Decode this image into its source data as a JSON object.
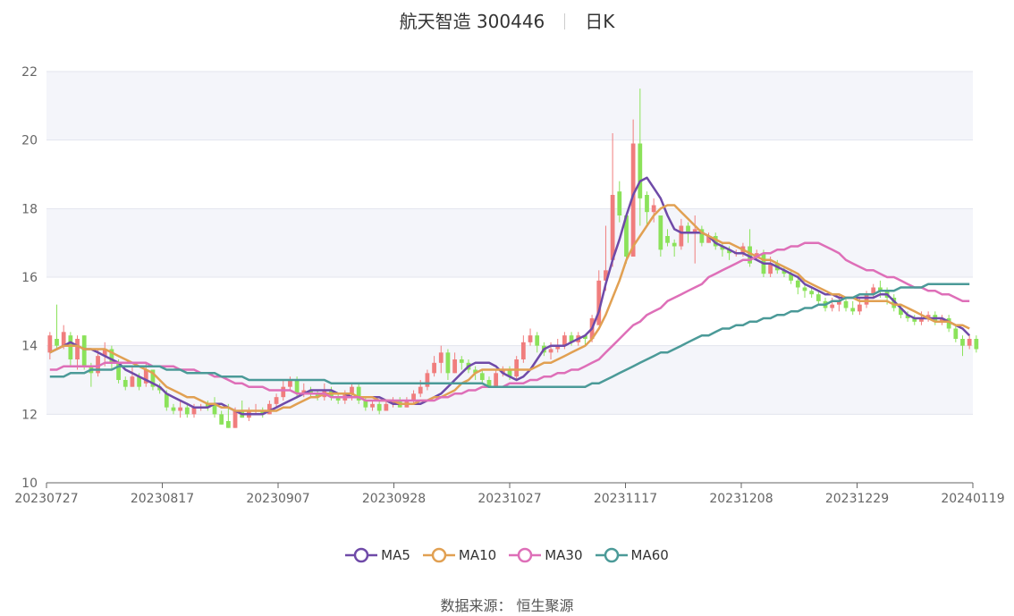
{
  "header": {
    "title": "航天智造 300446",
    "period": "日K"
  },
  "source": "数据来源： 恒生聚源",
  "colors": {
    "up": "#f07d7d",
    "down": "#8be25a",
    "ma5": "#6f4aa8",
    "ma10": "#e1a052",
    "ma30": "#de6fb8",
    "ma60": "#4b9a98"
  },
  "chart_data": {
    "type": "candlestick",
    "x_tick_labels": [
      "20230727",
      "20230817",
      "20230907",
      "20230928",
      "20231027",
      "20231117",
      "20231208",
      "20231229",
      "20240119"
    ],
    "y_tick_labels": [
      "10",
      "12",
      "14",
      "16",
      "18",
      "20",
      "22"
    ],
    "ylim": [
      10,
      22
    ],
    "series": [
      {
        "name": "MA5",
        "key": "ma5",
        "values": [
          13.8,
          13.9,
          14.0,
          14.1,
          14.0,
          13.9,
          13.9,
          13.8,
          13.7,
          13.6,
          13.5,
          13.3,
          13.2,
          13.1,
          13.0,
          12.9,
          12.8,
          12.6,
          12.5,
          12.4,
          12.3,
          12.2,
          12.2,
          12.2,
          12.3,
          12.3,
          12.2,
          12.1,
          12.0,
          12.0,
          12.0,
          12.0,
          12.1,
          12.2,
          12.3,
          12.4,
          12.5,
          12.6,
          12.7,
          12.7,
          12.7,
          12.7,
          12.6,
          12.6,
          12.5,
          12.5,
          12.5,
          12.5,
          12.5,
          12.4,
          12.3,
          12.3,
          12.3,
          12.3,
          12.3,
          12.4,
          12.5,
          12.6,
          12.8,
          13.0,
          13.2,
          13.4,
          13.5,
          13.5,
          13.5,
          13.4,
          13.2,
          13.1,
          13.0,
          13.1,
          13.3,
          13.6,
          13.9,
          14.0,
          14.0,
          14.0,
          14.1,
          14.2,
          14.3,
          14.5,
          15.0,
          15.8,
          16.5,
          17.1,
          17.8,
          18.4,
          18.8,
          18.9,
          18.6,
          18.3,
          17.8,
          17.4,
          17.3,
          17.3,
          17.3,
          17.3,
          17.2,
          17.0,
          16.9,
          16.8,
          16.7,
          16.7,
          16.6,
          16.5,
          16.4,
          16.4,
          16.3,
          16.2,
          16.1,
          16.0,
          15.8,
          15.7,
          15.6,
          15.5,
          15.5,
          15.4,
          15.4,
          15.4,
          15.4,
          15.4,
          15.4,
          15.5,
          15.5,
          15.3,
          15.1,
          14.9,
          14.8,
          14.8,
          14.8,
          14.8,
          14.8,
          14.7,
          14.6,
          14.5,
          14.3
        ]
      },
      {
        "name": "MA10",
        "key": "ma10",
        "values": [
          13.8,
          13.9,
          14.0,
          14.0,
          14.0,
          13.9,
          13.9,
          13.9,
          13.9,
          13.8,
          13.7,
          13.6,
          13.5,
          13.4,
          13.3,
          13.2,
          13.0,
          12.8,
          12.7,
          12.6,
          12.5,
          12.5,
          12.4,
          12.3,
          12.3,
          12.2,
          12.2,
          12.1,
          12.1,
          12.1,
          12.1,
          12.1,
          12.1,
          12.1,
          12.2,
          12.2,
          12.3,
          12.4,
          12.5,
          12.5,
          12.6,
          12.6,
          12.6,
          12.6,
          12.6,
          12.5,
          12.5,
          12.5,
          12.4,
          12.4,
          12.4,
          12.3,
          12.3,
          12.3,
          12.4,
          12.4,
          12.5,
          12.5,
          12.6,
          12.7,
          12.9,
          13.0,
          13.2,
          13.3,
          13.3,
          13.3,
          13.3,
          13.3,
          13.3,
          13.3,
          13.3,
          13.4,
          13.5,
          13.5,
          13.6,
          13.7,
          13.8,
          13.9,
          14.0,
          14.2,
          14.5,
          14.9,
          15.4,
          15.9,
          16.5,
          16.9,
          17.2,
          17.5,
          17.8,
          18.0,
          18.1,
          18.1,
          17.9,
          17.7,
          17.5,
          17.3,
          17.2,
          17.1,
          17.0,
          17.0,
          16.9,
          16.8,
          16.7,
          16.6,
          16.5,
          16.5,
          16.4,
          16.3,
          16.2,
          16.1,
          15.9,
          15.8,
          15.7,
          15.6,
          15.5,
          15.5,
          15.4,
          15.4,
          15.3,
          15.3,
          15.3,
          15.3,
          15.3,
          15.2,
          15.2,
          15.1,
          15.0,
          14.9,
          14.8,
          14.7,
          14.7,
          14.7,
          14.6,
          14.6,
          14.5
        ]
      },
      {
        "name": "MA30",
        "key": "ma30",
        "values": [
          13.3,
          13.3,
          13.4,
          13.4,
          13.4,
          13.4,
          13.4,
          13.4,
          13.5,
          13.5,
          13.5,
          13.5,
          13.5,
          13.5,
          13.5,
          13.4,
          13.4,
          13.4,
          13.4,
          13.3,
          13.3,
          13.3,
          13.2,
          13.2,
          13.1,
          13.1,
          13.0,
          12.9,
          12.9,
          12.8,
          12.8,
          12.8,
          12.7,
          12.7,
          12.7,
          12.7,
          12.6,
          12.6,
          12.6,
          12.6,
          12.6,
          12.5,
          12.5,
          12.5,
          12.5,
          12.5,
          12.4,
          12.4,
          12.4,
          12.4,
          12.4,
          12.4,
          12.4,
          12.4,
          12.4,
          12.4,
          12.4,
          12.5,
          12.5,
          12.6,
          12.6,
          12.7,
          12.7,
          12.8,
          12.8,
          12.8,
          12.8,
          12.9,
          12.9,
          12.9,
          13.0,
          13.0,
          13.1,
          13.1,
          13.2,
          13.2,
          13.3,
          13.3,
          13.4,
          13.5,
          13.6,
          13.8,
          14.0,
          14.2,
          14.4,
          14.6,
          14.7,
          14.9,
          15.0,
          15.1,
          15.3,
          15.4,
          15.5,
          15.6,
          15.7,
          15.8,
          16.0,
          16.1,
          16.2,
          16.3,
          16.4,
          16.5,
          16.5,
          16.6,
          16.7,
          16.7,
          16.8,
          16.8,
          16.9,
          16.9,
          17.0,
          17.0,
          17.0,
          16.9,
          16.8,
          16.7,
          16.5,
          16.4,
          16.3,
          16.2,
          16.2,
          16.1,
          16.0,
          16.0,
          15.9,
          15.8,
          15.7,
          15.7,
          15.6,
          15.6,
          15.5,
          15.5,
          15.4,
          15.3,
          15.3
        ]
      },
      {
        "name": "MA60",
        "key": "ma60",
        "values": [
          13.1,
          13.1,
          13.1,
          13.2,
          13.2,
          13.2,
          13.3,
          13.3,
          13.3,
          13.3,
          13.4,
          13.4,
          13.4,
          13.4,
          13.4,
          13.4,
          13.4,
          13.3,
          13.3,
          13.3,
          13.2,
          13.2,
          13.2,
          13.2,
          13.2,
          13.1,
          13.1,
          13.1,
          13.1,
          13.0,
          13.0,
          13.0,
          13.0,
          13.0,
          13.0,
          13.0,
          13.0,
          13.0,
          13.0,
          13.0,
          13.0,
          12.9,
          12.9,
          12.9,
          12.9,
          12.9,
          12.9,
          12.9,
          12.9,
          12.9,
          12.9,
          12.9,
          12.9,
          12.9,
          12.9,
          12.9,
          12.9,
          12.9,
          12.9,
          12.9,
          12.9,
          12.9,
          12.9,
          12.9,
          12.8,
          12.8,
          12.8,
          12.8,
          12.8,
          12.8,
          12.8,
          12.8,
          12.8,
          12.8,
          12.8,
          12.8,
          12.8,
          12.8,
          12.8,
          12.9,
          12.9,
          13.0,
          13.1,
          13.2,
          13.3,
          13.4,
          13.5,
          13.6,
          13.7,
          13.8,
          13.8,
          13.9,
          14.0,
          14.1,
          14.2,
          14.3,
          14.3,
          14.4,
          14.5,
          14.5,
          14.6,
          14.6,
          14.7,
          14.7,
          14.8,
          14.8,
          14.9,
          14.9,
          15.0,
          15.0,
          15.1,
          15.1,
          15.2,
          15.2,
          15.3,
          15.3,
          15.4,
          15.4,
          15.5,
          15.5,
          15.5,
          15.6,
          15.6,
          15.6,
          15.7,
          15.7,
          15.7,
          15.7,
          15.8,
          15.8,
          15.8,
          15.8,
          15.8,
          15.8,
          15.8
        ]
      }
    ],
    "candles_compact": "13.8,14.3,13.6,14.4|14.2,14.0,13.9,15.2|14.0,14.4,13.9,14.6|14.3,13.6,13.4,14.4|13.6,14.2,13.3,14.3|14.3,13.4,13.3,14.3|13.4,13.2,12.8,13.5|13.2,13.7,13.1,13.9|13.7,13.9,13.4,14.1|13.9,13.5,13.3,14.0|13.5,13.0,12.9,13.6|13.0,12.8,12.7,13.1|12.8,13.1,12.8,13.4|13.1,12.8,12.7,13.2|12.9,13.3,12.8,13.5|13.3,12.8,12.7,13.3|12.8,12.7,12.6,12.9|12.6,12.2,12.1,12.7|12.2,12.1,12.0,12.3|12.1,12.2,11.9,12.4|12.2,12.0,11.9,12.3|12.0,12.2,11.9,12.3|12.2,12.2,12.1,12.3|12.3,12.2,12.1,12.4|12.3,12.0,11.9,12.5|12.0,11.7,11.7,12.1|11.8,11.6,11.6,12.3|11.6,12.1,11.6,12.2|12.1,11.9,11.9,12.4|11.9,12.1,11.8,12.2|12.1,12.1,12.0,12.3|12.1,12.0,11.9,12.2|12.0,12.3,12.0,12.4|12.3,12.5,12.2,12.6|12.5,12.8,12.4,13.0|12.8,13.0,12.7,13.1|13.0,12.6,12.5,13.1|12.6,12.7,12.5,12.9|12.7,12.6,12.5,12.8|12.6,12.5,12.4,12.7|12.5,12.7,12.4,12.9|12.7,12.5,12.4,12.8|12.5,12.4,12.3,12.6|12.4,12.6,12.3,12.7|12.6,12.8,12.4,12.9|12.8,12.4,12.3,12.9|12.4,12.2,12.1,12.5|12.2,12.3,12.1,12.4|12.3,12.1,12.0,12.4|12.1,12.3,12.1,12.4|12.3,12.4,12.2,12.5|12.4,12.2,12.2,12.5|12.2,12.4,12.2,12.5|12.4,12.6,12.3,12.7|12.6,12.8,12.5,13.0|12.8,13.2,12.7,13.3|13.2,13.5,13.1,13.7|13.5,13.8,13.2,14.0|13.8,13.2,13.0,13.9|13.2,13.6,13.2,13.8|13.6,13.5,13.3,13.7|13.5,13.3,13.2,13.6|13.3,13.2,13.0,13.4|13.2,13.0,12.9,13.3|13.0,12.8,12.8,13.1|12.8,13.2,12.8,13.3|13.2,13.3,13.1,13.4|13.3,13.1,13.0,13.4|13.1,13.6,13.0,13.7|13.6,14.1,13.5,14.3|14.1,14.3,14.0,14.5|14.3,14.0,13.8,14.4|14.0,13.8,13.7,14.1|13.8,13.9,13.6,14.1|13.9,14.0,13.8,14.2|14.0,14.3,13.9,14.4|14.3,14.1,14.0,14.4|14.1,14.3,14.0,14.4|14.3,14.2,14.0,14.3|14.2,14.8,14.1,14.9|14.6,15.9,14.6,16.2|15.9,16.2,15.6,17.5|16.5,18.4,16.3,20.2|18.5,17.8,17.6,18.8|17.8,16.6,16.4,17.2|16.6,19.9,16.6,20.6|19.9,18.3,17.5,21.5|18.4,17.9,17.5,18.5|17.9,18.1,17.6,18.3|17.8,16.8,16.6,17.8|17.2,17.0,16.9,17.4|17.0,16.9,16.6,17.1|16.9,17.5,16.8,17.7|17.5,17.3,17.0,17.6|17.3,17.4,16.4,17.8|17.4,17.0,16.9,17.5|17.0,17.2,17.0,17.3|17.2,16.9,16.8,17.3|16.9,16.8,16.6,17.0|16.8,16.7,16.5,16.9|16.7,16.7,16.6,16.8|16.7,16.9,16.6,17.0|16.9,16.4,16.3,17.4|16.6,16.7,16.5,16.8|16.7,16.1,16.0,16.8|16.1,16.4,16.0,16.6|16.4,16.2,16.1,16.5|16.2,16.1,16.0,16.3|16.1,15.9,15.8,16.2|15.9,15.7,15.5,16.0|15.7,15.6,15.4,15.8|15.6,15.5,15.4,15.7|15.5,15.3,15.2,15.6|15.3,15.1,15.0,15.4|15.1,15.2,15.0,15.4|15.2,15.3,15.0,15.5|15.3,15.1,15.0,15.4|15.1,15.0,14.9,15.3|15.0,15.2,14.9,15.4|15.2,15.5,15.1,15.6|15.5,15.7,15.4,15.8|15.7,15.6,15.4,15.9|15.6,15.4,15.2,15.7|15.4,15.1,15.0,15.5|15.1,14.9,14.8,15.2|14.9,14.8,14.7,15.0|14.8,14.7,14.6,14.9|14.7,14.8,14.6,15.0|14.8,14.9,14.7,15.0|14.9,14.7,14.6,15.0|14.7,14.8,14.6,14.9|14.8,14.5,14.4,14.9|14.5,14.2,14.1,14.6|14.2,14.0,13.7,14.3|14.0,14.2,13.9,14.3|14.2,13.9,13.8,14.3"
  }
}
